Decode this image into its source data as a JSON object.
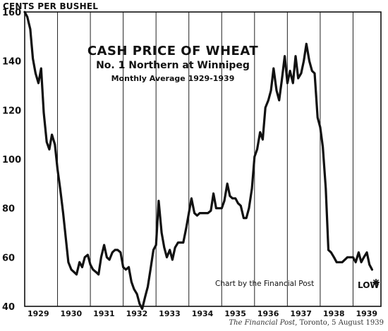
{
  "chart_data": {
    "type": "line",
    "title": "CASH PRICE OF WHEAT",
    "subtitle": "No. 1 Northern at Winnipeg",
    "subtitle2": "Monthly Average 1929-1939",
    "ylabel": "CENTS PER BUSHEL",
    "ylim": [
      40,
      160
    ],
    "yticks": [
      40,
      60,
      80,
      100,
      120,
      140,
      160
    ],
    "xlim": [
      1929.0,
      1939.85
    ],
    "xticks": [
      "1929",
      "1930",
      "1931",
      "1932",
      "1933",
      "1934",
      "1935",
      "1936",
      "1937",
      "1938",
      "1939"
    ],
    "grid": "vertical year lines",
    "annotation_credit": "Chart by the Financial Post",
    "annotation_low": "LOW",
    "series": [
      {
        "x": [
          1929.0,
          1929.08,
          1929.17,
          1929.25,
          1929.33,
          1929.42,
          1929.5,
          1929.58,
          1929.67,
          1929.75,
          1929.83,
          1929.92,
          1930.0,
          1930.08,
          1930.17,
          1930.25,
          1930.33,
          1930.42,
          1930.5,
          1930.58,
          1930.67,
          1930.75,
          1930.83,
          1930.92,
          1931.0,
          1931.08,
          1931.17,
          1931.25,
          1931.33,
          1931.42,
          1931.5,
          1931.58,
          1931.67,
          1931.75,
          1931.83,
          1931.92,
          1932.0,
          1932.08,
          1932.17,
          1932.25,
          1932.33,
          1932.42,
          1932.5,
          1932.58,
          1932.67,
          1932.75,
          1932.83,
          1932.92,
          1933.0,
          1933.08,
          1933.17,
          1933.25,
          1933.33,
          1933.42,
          1933.5,
          1933.58,
          1933.67,
          1933.75,
          1933.83,
          1933.92,
          1934.0,
          1934.08,
          1934.17,
          1934.25,
          1934.33,
          1934.42,
          1934.5,
          1934.58,
          1934.67,
          1934.75,
          1934.83,
          1934.92,
          1935.0,
          1935.08,
          1935.17,
          1935.25,
          1935.33,
          1935.42,
          1935.5,
          1935.58,
          1935.67,
          1935.75,
          1935.83,
          1935.92,
          1936.0,
          1936.08,
          1936.17,
          1936.25,
          1936.33,
          1936.42,
          1936.5,
          1936.58,
          1936.67,
          1936.75,
          1936.83,
          1936.92,
          1937.0,
          1937.08,
          1937.17,
          1937.25,
          1937.33,
          1937.42,
          1937.5,
          1937.58,
          1937.67,
          1937.75,
          1937.83,
          1937.92,
          1938.0,
          1938.08,
          1938.17,
          1938.25,
          1938.33,
          1938.42,
          1938.5,
          1938.58,
          1938.67,
          1938.75,
          1938.83,
          1938.92,
          1939.0,
          1939.08,
          1939.17,
          1939.25,
          1939.33,
          1939.42,
          1939.5,
          1939.58
        ],
        "values": [
          160,
          158,
          153,
          141,
          135,
          131,
          137,
          119,
          107,
          104,
          110,
          106,
          96,
          88,
          78,
          68,
          58,
          55,
          54,
          53,
          58,
          56,
          60,
          61,
          57,
          55,
          54,
          53,
          60,
          65,
          60,
          59,
          62,
          63,
          63,
          62,
          56,
          55,
          56,
          50,
          47,
          45,
          41,
          39,
          44,
          48,
          55,
          63,
          65,
          83,
          70,
          64,
          60,
          63,
          59,
          64,
          66,
          66,
          66,
          72,
          78,
          84,
          78,
          77,
          78,
          78,
          78,
          78,
          79,
          86,
          80,
          80,
          80,
          83,
          90,
          85,
          84,
          84,
          82,
          81,
          76,
          76,
          80,
          88,
          101,
          104,
          111,
          108,
          121,
          124,
          128,
          137,
          128,
          124,
          132,
          142,
          131,
          136,
          131,
          142,
          133,
          135,
          140,
          147,
          140,
          136,
          135,
          117,
          113,
          105,
          88,
          63,
          62,
          60,
          58,
          58,
          58,
          59,
          60,
          60,
          60,
          58,
          62,
          58,
          60,
          62,
          57,
          55
        ]
      }
    ]
  },
  "source_credit": {
    "publication": "The Financial Post",
    "rest": ", Toronto, 5 August 1939"
  }
}
